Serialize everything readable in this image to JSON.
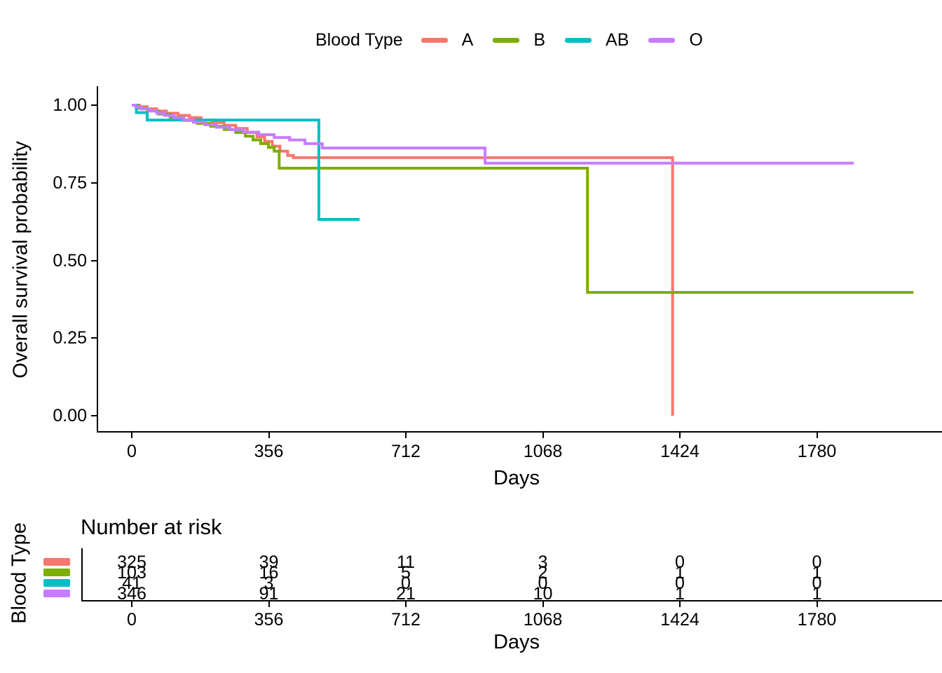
{
  "legend": {
    "title": "Blood Type",
    "items": [
      {
        "label": "A",
        "color": "#F8766D"
      },
      {
        "label": "B",
        "color": "#7CAE00"
      },
      {
        "label": "AB",
        "color": "#00BFC4"
      },
      {
        "label": "O",
        "color": "#C77CFF"
      }
    ]
  },
  "main_plot": {
    "ylabel": "Overall survival probability",
    "xlabel": "Days",
    "yticks": [
      {
        "label": "1.00",
        "value": 1.0
      },
      {
        "label": "0.75",
        "value": 0.75
      },
      {
        "label": "0.50",
        "value": 0.5
      },
      {
        "label": "0.25",
        "value": 0.25
      },
      {
        "label": "0.00",
        "value": 0.0
      }
    ],
    "xticks": [
      {
        "label": "0",
        "value": 0
      },
      {
        "label": "356",
        "value": 356
      },
      {
        "label": "712",
        "value": 712
      },
      {
        "label": "1068",
        "value": 1068
      },
      {
        "label": "1424",
        "value": 1424
      },
      {
        "label": "1780",
        "value": 1780
      }
    ],
    "axis_color": "#000000"
  },
  "chart_data": {
    "type": "line",
    "subtype": "kaplan-meier-step",
    "title": "",
    "xlabel": "Days",
    "ylabel": "Overall survival probability",
    "xlim": [
      0,
      2080
    ],
    "ylim": [
      0.0,
      1.0
    ],
    "xticks": [
      0,
      356,
      712,
      1068,
      1424,
      1780
    ],
    "yticks": [
      0.0,
      0.25,
      0.5,
      0.75,
      1.0
    ],
    "grid": false,
    "legend_title": "Blood Type",
    "legend_position": "top",
    "series": [
      {
        "name": "A",
        "color": "#F8766D",
        "points": [
          [
            0,
            1
          ],
          [
            20,
            0.995
          ],
          [
            40,
            0.988
          ],
          [
            65,
            0.981
          ],
          [
            90,
            0.974
          ],
          [
            120,
            0.967
          ],
          [
            150,
            0.96
          ],
          [
            180,
            0.952
          ],
          [
            210,
            0.944
          ],
          [
            240,
            0.935
          ],
          [
            270,
            0.925
          ],
          [
            300,
            0.912
          ],
          [
            325,
            0.898
          ],
          [
            345,
            0.883
          ],
          [
            365,
            0.868
          ],
          [
            385,
            0.852
          ],
          [
            405,
            0.838
          ],
          [
            420,
            0.831
          ],
          [
            1405,
            0.831
          ],
          [
            1405,
            0.0
          ]
        ]
      },
      {
        "name": "B",
        "color": "#7CAE00",
        "points": [
          [
            0,
            1
          ],
          [
            15,
            0.99
          ],
          [
            40,
            0.981
          ],
          [
            70,
            0.971
          ],
          [
            100,
            0.961
          ],
          [
            135,
            0.951
          ],
          [
            170,
            0.941
          ],
          [
            205,
            0.932
          ],
          [
            240,
            0.922
          ],
          [
            270,
            0.912
          ],
          [
            295,
            0.9
          ],
          [
            315,
            0.888
          ],
          [
            335,
            0.876
          ],
          [
            355,
            0.864
          ],
          [
            370,
            0.852
          ],
          [
            383,
            0.797
          ],
          [
            1184,
            0.797
          ],
          [
            1184,
            0.397
          ],
          [
            2031,
            0.397
          ]
        ]
      },
      {
        "name": "AB",
        "color": "#00BFC4",
        "points": [
          [
            0,
            1
          ],
          [
            12,
            0.976
          ],
          [
            40,
            0.952
          ],
          [
            486,
            0.952
          ],
          [
            486,
            0.632
          ],
          [
            592,
            0.632
          ]
        ]
      },
      {
        "name": "O",
        "color": "#C77CFF",
        "points": [
          [
            0,
            1
          ],
          [
            10,
            0.994
          ],
          [
            25,
            0.988
          ],
          [
            45,
            0.981
          ],
          [
            65,
            0.974
          ],
          [
            85,
            0.967
          ],
          [
            110,
            0.96
          ],
          [
            135,
            0.952
          ],
          [
            160,
            0.945
          ],
          [
            190,
            0.937
          ],
          [
            220,
            0.929
          ],
          [
            255,
            0.921
          ],
          [
            290,
            0.913
          ],
          [
            330,
            0.905
          ],
          [
            370,
            0.896
          ],
          [
            410,
            0.888
          ],
          [
            450,
            0.876
          ],
          [
            495,
            0.862
          ],
          [
            918,
            0.862
          ],
          [
            918,
            0.813
          ],
          [
            1876,
            0.813
          ]
        ]
      }
    ],
    "number_at_risk": {
      "times": [
        0,
        356,
        712,
        1068,
        1424,
        1780
      ],
      "rows": [
        {
          "group": "A",
          "color": "#F8766D",
          "values": [
            "325",
            "39",
            "11",
            "3",
            "0",
            "0"
          ]
        },
        {
          "group": "B",
          "color": "#7CAE00",
          "values": [
            "103",
            "16",
            "5",
            "2",
            "1",
            "1"
          ]
        },
        {
          "group": "AB",
          "color": "#00BFC4",
          "values": [
            "41",
            "3",
            "0",
            "0",
            "0",
            "0"
          ]
        },
        {
          "group": "O",
          "color": "#C77CFF",
          "values": [
            "346",
            "91",
            "21",
            "10",
            "1",
            "1"
          ]
        }
      ]
    }
  },
  "risk_table": {
    "title": "Number at risk",
    "ylabel": "Blood Type",
    "xlabel": "Days",
    "xticks": [
      {
        "label": "0",
        "value": 0
      },
      {
        "label": "356",
        "value": 356
      },
      {
        "label": "712",
        "value": 712
      },
      {
        "label": "1068",
        "value": 1068
      },
      {
        "label": "1424",
        "value": 1424
      },
      {
        "label": "1780",
        "value": 1780
      }
    ]
  }
}
